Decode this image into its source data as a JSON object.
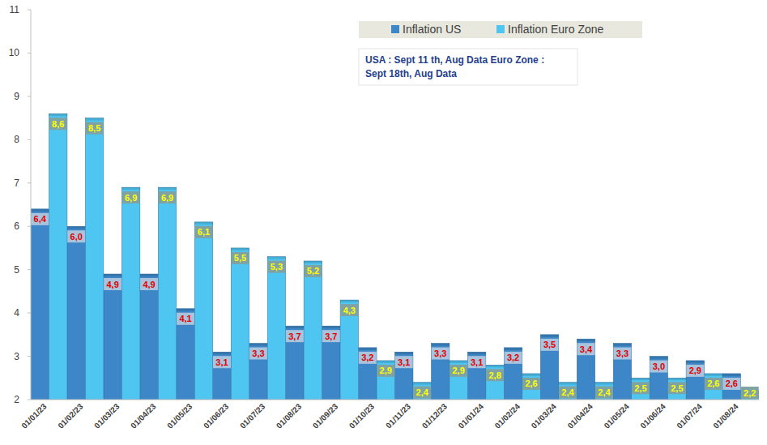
{
  "chart_data": {
    "type": "bar",
    "annotations": [
      "USA : Sept 11 th, Aug Data Euro Zone :",
      "Sept 18th, Aug Data"
    ],
    "categories": [
      "01/01/23",
      "01/02/23",
      "01/03/23",
      "01/04/23",
      "01/05/23",
      "01/06/23",
      "01/07/23",
      "01/08/23",
      "01/09/23",
      "01/10/23",
      "01/11/23",
      "01/12/23",
      "01/01/24",
      "01/02/24",
      "01/03/24",
      "01/04/24",
      "01/05/24",
      "01/06/24",
      "01/07/24",
      "01/08/24"
    ],
    "series": [
      {
        "name": "Inflation US",
        "color": "#3d87c8",
        "values": [
          6.4,
          6.0,
          4.9,
          4.9,
          4.1,
          3.1,
          3.3,
          3.7,
          3.7,
          3.2,
          3.1,
          3.3,
          3.1,
          3.2,
          3.5,
          3.4,
          3.3,
          3.0,
          2.9,
          2.6
        ],
        "value_labels": [
          "6,4",
          "6,0",
          "4,9",
          "4,9",
          "4,1",
          "3,1",
          "3,3",
          "3,7",
          "3,7",
          "3,2",
          "3,1",
          "3,3",
          "3,1",
          "3,2",
          "3,5",
          "3,4",
          "3,3",
          "3,0",
          "2,9",
          "2,6"
        ]
      },
      {
        "name": "Inflation Euro Zone",
        "color": "#4fc6f2",
        "values": [
          8.6,
          8.5,
          6.9,
          6.9,
          6.1,
          5.5,
          5.3,
          5.2,
          4.3,
          2.9,
          2.4,
          2.9,
          2.8,
          2.6,
          2.4,
          2.4,
          2.5,
          2.5,
          2.6,
          2.2
        ],
        "value_labels": [
          "8,6",
          "8,5",
          "6,9",
          "6,9",
          "6,1",
          "5,5",
          "5,3",
          "5,2",
          "4,3",
          "2,9",
          "2,4",
          "2,9",
          "2,8",
          "2,6",
          "2,4",
          "2,4",
          "2,5",
          "2,5",
          "2,6",
          "2,2"
        ]
      }
    ],
    "ylim": [
      2,
      11
    ],
    "yticks": [
      2,
      3,
      4,
      5,
      6,
      7,
      8,
      9,
      10,
      11
    ],
    "grid": false,
    "legend": "top",
    "data_labels": true
  }
}
